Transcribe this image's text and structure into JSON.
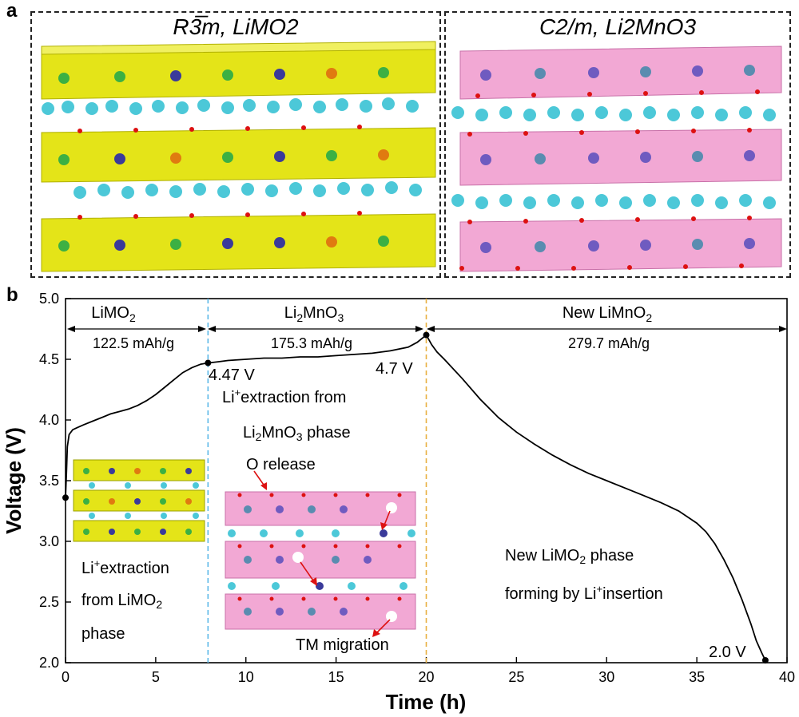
{
  "panel_a": {
    "label": "a",
    "left_title": "R3̅m, LiMO2",
    "right_title": "C2/m, Li2MnO3",
    "colors": {
      "layered_polyhedra": "#e0e010",
      "li2mno3_polyhedra": "#ee88c4",
      "li_atoms": "#4cc8d8",
      "oxygen": "#dd1111",
      "tm_green": "#3cb043",
      "tm_blue": "#3a3a9a",
      "tm_orange": "#e07a10"
    }
  },
  "panel_b": {
    "label": "b",
    "regions": [
      {
        "name": "LiMO",
        "name_sub": "2",
        "capacity": "122.5 mAh/g",
        "from": 0,
        "to": 7.9
      },
      {
        "name": "Li",
        "name_sub1": "2",
        "name_mid": "MnO",
        "name_sub2": "3",
        "capacity": "175.3 mAh/g",
        "from": 7.9,
        "to": 20
      },
      {
        "name": "New LiMnO",
        "name_sub": "2",
        "capacity": "279.7 mAh/g",
        "from": 20,
        "to": 40
      }
    ],
    "voltage_markers": [
      "4.47 V",
      "4.7 V",
      "2.0 V"
    ],
    "annotations": {
      "li_extraction_1a": "Li",
      "li_extraction_1b": "extraction",
      "li_extraction_1c": "from LiMO",
      "li_extraction_1d": "2",
      "li_extraction_1e": "phase",
      "li_extraction_2a": "Li",
      "li_extraction_2b": "extraction from",
      "li_extraction_2c": "Li",
      "li_extraction_2d": "2",
      "li_extraction_2e": "MnO",
      "li_extraction_2f": "3",
      "li_extraction_2g": " phase",
      "o_release": "O release",
      "tm_migration": "TM migration",
      "new_phase_1a": "New LiMO",
      "new_phase_1b": "2",
      "new_phase_1c": " phase",
      "new_phase_2a": "forming by Li",
      "new_phase_2b": "insertion",
      "plus": "+"
    }
  },
  "chart_data": {
    "type": "line",
    "xlabel": "Time (h)",
    "ylabel": "Voltage (V)",
    "xlim": [
      0,
      40
    ],
    "ylim": [
      2.0,
      5.0
    ],
    "xticks": [
      0,
      5,
      10,
      15,
      20,
      25,
      30,
      35,
      40
    ],
    "yticks": [
      2.0,
      2.5,
      3.0,
      3.5,
      4.0,
      4.5,
      5.0
    ],
    "series": [
      {
        "x": [
          0,
          0.05,
          0.1,
          0.2,
          0.4,
          0.7,
          1.0,
          1.5,
          2,
          2.5,
          3,
          3.5,
          4,
          4.5,
          5,
          5.5,
          6,
          6.5,
          7,
          7.5,
          7.9,
          8.5,
          9,
          10,
          11,
          12,
          13,
          14,
          15,
          16,
          17,
          18,
          19,
          19.5,
          20,
          20.3,
          20.6,
          21,
          22,
          23,
          24,
          25,
          26,
          27,
          28,
          29,
          30,
          31,
          32,
          33,
          34,
          35,
          35.5,
          36,
          36.5,
          37,
          37.5,
          38,
          38.3,
          38.6,
          38.8
        ],
        "y": [
          3.36,
          3.55,
          3.78,
          3.88,
          3.92,
          3.94,
          3.96,
          3.99,
          4.02,
          4.05,
          4.07,
          4.09,
          4.12,
          4.16,
          4.21,
          4.27,
          4.33,
          4.39,
          4.43,
          4.46,
          4.47,
          4.48,
          4.49,
          4.5,
          4.51,
          4.51,
          4.52,
          4.52,
          4.53,
          4.54,
          4.55,
          4.57,
          4.6,
          4.64,
          4.7,
          4.62,
          4.56,
          4.5,
          4.34,
          4.17,
          4.02,
          3.9,
          3.8,
          3.71,
          3.63,
          3.56,
          3.5,
          3.44,
          3.38,
          3.32,
          3.25,
          3.15,
          3.08,
          2.98,
          2.85,
          2.7,
          2.52,
          2.32,
          2.18,
          2.08,
          2.02
        ]
      }
    ],
    "markers": [
      {
        "x": 0,
        "y": 3.36
      },
      {
        "x": 7.9,
        "y": 4.47
      },
      {
        "x": 20,
        "y": 4.7
      },
      {
        "x": 38.8,
        "y": 2.02
      }
    ],
    "vlines": [
      {
        "x": 7.9,
        "color": "#5bb8e8"
      },
      {
        "x": 20,
        "color": "#e8b040"
      }
    ]
  }
}
